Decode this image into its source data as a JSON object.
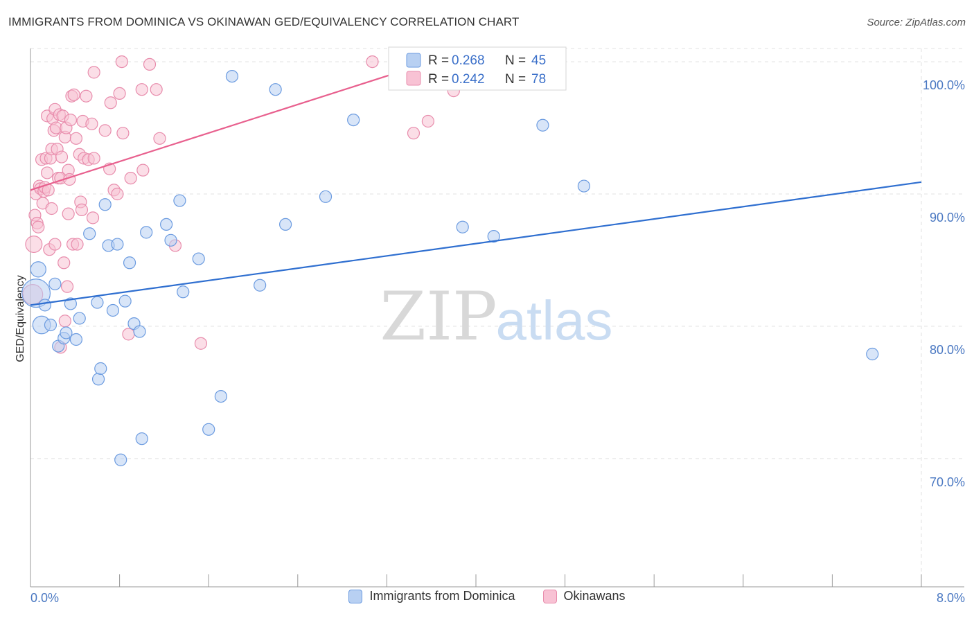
{
  "header": {
    "title": "IMMIGRANTS FROM DOMINICA VS OKINAWAN GED/EQUIVALENCY CORRELATION CHART",
    "source": "Source: ZipAtlas.com"
  },
  "watermark": {
    "zip": "ZIP",
    "atlas": "atlas"
  },
  "colors": {
    "blue_fill": "#b8d0f2",
    "blue_stroke": "#6b9be0",
    "blue_line": "#2f6fd0",
    "pink_fill": "#f8c2d4",
    "pink_stroke": "#e88cac",
    "pink_line": "#e8608e",
    "value_text": "#3a6fc9",
    "grid": "#e0e0e0"
  },
  "legend_top": {
    "rows": [
      {
        "r_label": "R = ",
        "r_value": "0.268",
        "n_label": "N = ",
        "n_value": "45",
        "series": "blue"
      },
      {
        "r_label": "R = ",
        "r_value": "0.242",
        "n_label": "N = ",
        "n_value": "78",
        "series": "pink"
      }
    ]
  },
  "legend_bottom": [
    {
      "label": "Immigrants from Dominica",
      "series": "blue"
    },
    {
      "label": "Okinawans",
      "series": "pink"
    }
  ],
  "chart_data": {
    "type": "scatter",
    "title": "IMMIGRANTS FROM DOMINICA VS OKINAWAN GED/EQUIVALENCY CORRELATION CHART",
    "xlabel": "",
    "ylabel": "GED/Equivalency",
    "xlim": [
      0,
      8
    ],
    "ylim": [
      60.3,
      101
    ],
    "x_tick_labels": [
      {
        "value": 0,
        "label": "0.0%"
      },
      {
        "value": 8,
        "label": "8.0%"
      }
    ],
    "y_tick_labels": [
      {
        "value": 70,
        "label": "70.0%"
      },
      {
        "value": 80,
        "label": "80.0%"
      },
      {
        "value": 90,
        "label": "90.0%"
      },
      {
        "value": 100,
        "label": "100.0%"
      }
    ],
    "grid": true,
    "series": [
      {
        "name": "Immigrants from Dominica",
        "R": 0.268,
        "N": 45,
        "trend": {
          "x": [
            0,
            8
          ],
          "y": [
            81.6,
            90.9
          ]
        },
        "points": [
          [
            0.05,
            82.5,
            2.4
          ],
          [
            0.07,
            84.3,
            1.3
          ],
          [
            0.1,
            80.1,
            1.5
          ],
          [
            0.13,
            81.6,
            1.0
          ],
          [
            0.18,
            80.1,
            1.0
          ],
          [
            0.22,
            83.2,
            1.0
          ],
          [
            0.25,
            78.5,
            1.0
          ],
          [
            0.3,
            79.1,
            1.0
          ],
          [
            0.32,
            79.5,
            1.0
          ],
          [
            0.36,
            81.7,
            1.0
          ],
          [
            0.41,
            79.0,
            1.0
          ],
          [
            0.44,
            80.6,
            1.0
          ],
          [
            0.53,
            87.0,
            1.0
          ],
          [
            0.61,
            76.0,
            1.0
          ],
          [
            0.6,
            81.8,
            1.0
          ],
          [
            0.63,
            76.8,
            1.0
          ],
          [
            0.67,
            89.2,
            1.0
          ],
          [
            0.7,
            86.1,
            1.0
          ],
          [
            0.74,
            81.2,
            1.0
          ],
          [
            0.78,
            86.2,
            1.0
          ],
          [
            0.81,
            69.9,
            1.0
          ],
          [
            0.85,
            81.9,
            1.0
          ],
          [
            0.89,
            84.8,
            1.0
          ],
          [
            0.93,
            80.2,
            1.0
          ],
          [
            0.98,
            79.6,
            1.0
          ],
          [
            1.0,
            71.5,
            1.0
          ],
          [
            1.04,
            87.1,
            1.0
          ],
          [
            1.22,
            87.7,
            1.0
          ],
          [
            1.26,
            86.5,
            1.0
          ],
          [
            1.34,
            89.5,
            1.0
          ],
          [
            1.37,
            82.6,
            1.0
          ],
          [
            1.51,
            85.1,
            1.0
          ],
          [
            1.6,
            72.2,
            1.0
          ],
          [
            1.71,
            74.7,
            1.0
          ],
          [
            1.81,
            98.9,
            1.0
          ],
          [
            2.06,
            83.1,
            1.0
          ],
          [
            2.2,
            97.9,
            1.0
          ],
          [
            2.29,
            87.7,
            1.0
          ],
          [
            2.65,
            89.8,
            1.0
          ],
          [
            2.9,
            95.6,
            1.0
          ],
          [
            3.88,
            87.5,
            1.0
          ],
          [
            4.16,
            86.8,
            1.0
          ],
          [
            4.6,
            95.2,
            1.0
          ],
          [
            4.97,
            90.6,
            1.0
          ],
          [
            7.56,
            77.9,
            1.0
          ]
        ]
      },
      {
        "name": "Okinawans",
        "R": 0.242,
        "N": 78,
        "trend": {
          "x": [
            0,
            3.6
          ],
          "y": [
            90.3,
            100.0
          ]
        },
        "points": [
          [
            0.02,
            82.4,
            1.7
          ],
          [
            0.03,
            86.2,
            1.4
          ],
          [
            0.04,
            88.4,
            1.0
          ],
          [
            0.05,
            90.0,
            1.0
          ],
          [
            0.06,
            87.8,
            1.0
          ],
          [
            0.07,
            87.5,
            1.0
          ],
          [
            0.08,
            90.6,
            1.0
          ],
          [
            0.09,
            90.4,
            1.0
          ],
          [
            0.1,
            92.6,
            1.0
          ],
          [
            0.11,
            89.3,
            1.0
          ],
          [
            0.12,
            90.2,
            1.0
          ],
          [
            0.13,
            90.5,
            1.0
          ],
          [
            0.14,
            92.7,
            1.0
          ],
          [
            0.15,
            91.6,
            1.0
          ],
          [
            0.15,
            95.9,
            1.0
          ],
          [
            0.16,
            90.3,
            1.0
          ],
          [
            0.17,
            85.8,
            1.0
          ],
          [
            0.18,
            92.7,
            1.0
          ],
          [
            0.19,
            93.4,
            1.0
          ],
          [
            0.19,
            88.9,
            1.0
          ],
          [
            0.2,
            95.7,
            1.0
          ],
          [
            0.21,
            94.8,
            1.0
          ],
          [
            0.22,
            96.4,
            1.0
          ],
          [
            0.22,
            86.2,
            1.0
          ],
          [
            0.23,
            95.0,
            1.0
          ],
          [
            0.24,
            93.4,
            1.0
          ],
          [
            0.25,
            91.2,
            1.0
          ],
          [
            0.26,
            96.0,
            1.0
          ],
          [
            0.27,
            91.2,
            1.0
          ],
          [
            0.27,
            78.4,
            1.0
          ],
          [
            0.28,
            92.8,
            1.0
          ],
          [
            0.29,
            95.9,
            1.0
          ],
          [
            0.3,
            84.8,
            1.0
          ],
          [
            0.31,
            94.3,
            1.0
          ],
          [
            0.31,
            80.4,
            1.0
          ],
          [
            0.32,
            95.0,
            1.0
          ],
          [
            0.33,
            83.0,
            1.0
          ],
          [
            0.34,
            91.8,
            1.0
          ],
          [
            0.34,
            88.5,
            1.0
          ],
          [
            0.35,
            91.1,
            1.0
          ],
          [
            0.36,
            95.6,
            1.0
          ],
          [
            0.37,
            97.4,
            1.0
          ],
          [
            0.38,
            86.2,
            1.0
          ],
          [
            0.39,
            97.5,
            1.0
          ],
          [
            0.41,
            94.2,
            1.0
          ],
          [
            0.42,
            86.2,
            1.0
          ],
          [
            0.44,
            93.0,
            1.0
          ],
          [
            0.45,
            89.4,
            1.0
          ],
          [
            0.46,
            88.8,
            1.0
          ],
          [
            0.47,
            95.5,
            1.0
          ],
          [
            0.48,
            92.7,
            1.0
          ],
          [
            0.5,
            97.4,
            1.0
          ],
          [
            0.52,
            92.6,
            1.0
          ],
          [
            0.55,
            95.3,
            1.0
          ],
          [
            0.56,
            88.2,
            1.0
          ],
          [
            0.57,
            92.7,
            1.0
          ],
          [
            0.57,
            99.2,
            1.0
          ],
          [
            0.67,
            94.8,
            1.0
          ],
          [
            0.71,
            91.9,
            1.0
          ],
          [
            0.72,
            96.9,
            1.0
          ],
          [
            0.75,
            90.3,
            1.0
          ],
          [
            0.78,
            90.0,
            1.0
          ],
          [
            0.8,
            97.6,
            1.0
          ],
          [
            0.82,
            100.0,
            1.0
          ],
          [
            0.83,
            94.6,
            1.0
          ],
          [
            0.88,
            79.4,
            1.0
          ],
          [
            0.9,
            91.2,
            1.0
          ],
          [
            1.0,
            97.9,
            1.0
          ],
          [
            1.01,
            91.8,
            1.0
          ],
          [
            1.07,
            99.8,
            1.0
          ],
          [
            1.13,
            97.9,
            1.0
          ],
          [
            1.16,
            94.2,
            1.0
          ],
          [
            1.3,
            86.1,
            1.0
          ],
          [
            1.53,
            78.7,
            1.0
          ],
          [
            3.07,
            100.0,
            1.0
          ],
          [
            3.44,
            94.6,
            1.0
          ],
          [
            3.57,
            95.5,
            1.0
          ],
          [
            3.8,
            97.8,
            1.0
          ]
        ]
      }
    ]
  }
}
